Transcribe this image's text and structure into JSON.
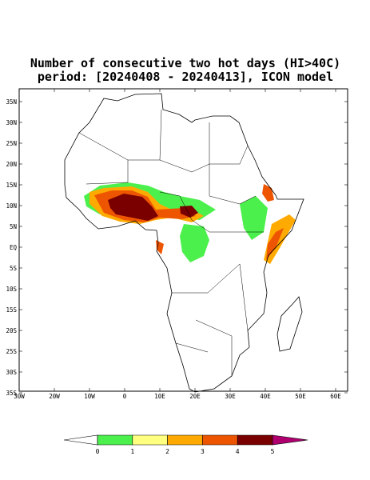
{
  "title": [
    "Number of consecutive two hot days (HI>40C)",
    "period: [20240408 - 20240413], ICON model"
  ],
  "lat_ticks": [
    {
      "value": 35,
      "label": "35N"
    },
    {
      "value": 30,
      "label": "30N"
    },
    {
      "value": 25,
      "label": "25N"
    },
    {
      "value": 20,
      "label": "20N"
    },
    {
      "value": 15,
      "label": "15N"
    },
    {
      "value": 10,
      "label": "10N"
    },
    {
      "value": 5,
      "label": "5N"
    },
    {
      "value": 0,
      "label": "EQ"
    },
    {
      "value": -5,
      "label": "5S"
    },
    {
      "value": -10,
      "label": "10S"
    },
    {
      "value": -15,
      "label": "15S"
    },
    {
      "value": -20,
      "label": "20S"
    },
    {
      "value": -25,
      "label": "25S"
    },
    {
      "value": -30,
      "label": "30S"
    },
    {
      "value": -35,
      "label": "35S"
    }
  ],
  "lon_ticks": [
    {
      "value": -30,
      "label": "30W"
    },
    {
      "value": -20,
      "label": "20W"
    },
    {
      "value": -10,
      "label": "10W"
    },
    0,
    {
      "value": 10,
      "label": "10E"
    },
    {
      "value": 20,
      "label": "20E"
    },
    {
      "value": 30,
      "label": "30E"
    },
    {
      "value": 40,
      "label": "40E"
    },
    {
      "value": 50,
      "label": "50E"
    },
    {
      "value": 60,
      "label": "60E"
    }
  ],
  "colorbar": {
    "levels": [
      0,
      1,
      2,
      3,
      4,
      5
    ],
    "colors": [
      "#ffffff",
      "#4cf04c",
      "#ffff80",
      "#ffaa00",
      "#ee5500",
      "#7a0000",
      "#b00070"
    ]
  }
}
